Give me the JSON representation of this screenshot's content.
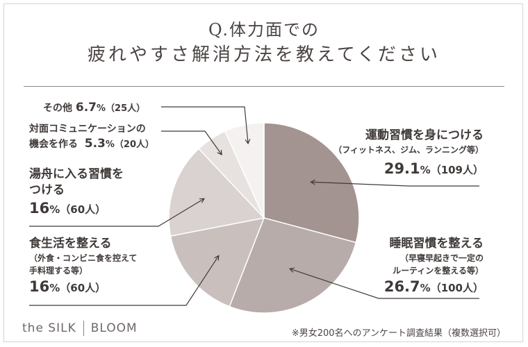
{
  "title": {
    "line1": "Q.体力面での",
    "line2": "疲れやすさ解消方法を教えてください"
  },
  "chart_data": {
    "type": "pie",
    "slices": [
      {
        "name": "運動習慣を身につける",
        "sub": "（フィットネス、ジム、ランニング等）",
        "percent": 29.1,
        "percent_text": "29.1",
        "count_text": "（109人）",
        "color": "#a39491"
      },
      {
        "name": "睡眠習慣を整える",
        "sub1": "（早寝早起きで一定の",
        "sub2": "ルーティンを整える等）",
        "percent": 26.7,
        "percent_text": "26.7",
        "count_text": "（100人）",
        "color": "#b7aca9"
      },
      {
        "name": "食生活を整える",
        "sub1": "（外食・コンビニ食を控えて",
        "sub2": "手料理する等）",
        "percent": 16.0,
        "percent_text": "16",
        "count_text": "（60人）",
        "color": "#c9c0bd"
      },
      {
        "name1": "湯舟に入る習慣を",
        "name2": "つける",
        "percent": 16.0,
        "percent_text": "16",
        "count_text": "（60人）",
        "color": "#d9d2d0"
      },
      {
        "name1": "対面コミュニケーションの",
        "name2": "機会を作る",
        "percent": 5.3,
        "percent_text": "5.3",
        "count_text": "（20人）",
        "color": "#e7e2e0"
      },
      {
        "name": "その他",
        "percent": 6.7,
        "percent_text": "6.7",
        "count_text": "（25人）",
        "color": "#f4f1f0"
      }
    ],
    "unit": "%"
  },
  "footer": {
    "brand_left": "the SILK",
    "brand_right": "BLOOM",
    "note": "※男女200名へのアンケート調査結果（複数選択可）"
  }
}
